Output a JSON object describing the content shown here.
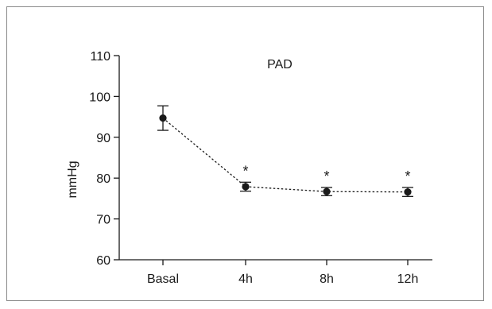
{
  "chart_data": {
    "type": "line",
    "title": "PAD",
    "xlabel": "",
    "ylabel": "mmHg",
    "categories": [
      "Basal",
      "4h",
      "8h",
      "12h"
    ],
    "series": [
      {
        "values": [
          94.7,
          77.9,
          76.7,
          76.6
        ],
        "error": [
          3.0,
          1.1,
          1.0,
          1.1
        ],
        "markers": [
          "",
          "*",
          "*",
          "*"
        ]
      }
    ],
    "ylim": [
      60,
      110
    ],
    "yticks": [
      60,
      70,
      80,
      90,
      100,
      110
    ],
    "line_style": "dotted",
    "marker": "filled-circle",
    "grid": false,
    "legend": "none",
    "color": "#1a1a1a"
  }
}
